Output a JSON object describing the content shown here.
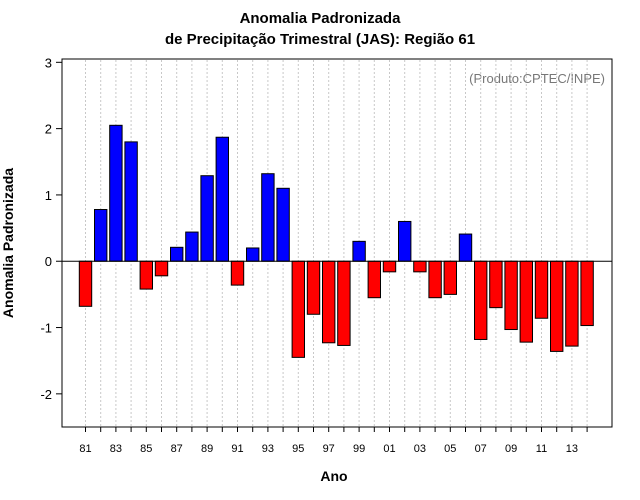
{
  "chart_data": {
    "type": "bar",
    "title": "Anomalia Padronizada",
    "subtitle": "de Precipitação Trimestral (JAS): Região 61",
    "xlabel": "Ano",
    "ylabel": "Anomalia Padronizada",
    "annotation": "(Produto:CPTEC/INPE)",
    "ylim": [
      -2.5,
      3.05
    ],
    "yticks": [
      -2,
      -1,
      0,
      1,
      2,
      3
    ],
    "xtick_labels": [
      "81",
      "83",
      "85",
      "87",
      "89",
      "91",
      "93",
      "95",
      "97",
      "99",
      "01",
      "03",
      "05",
      "07",
      "09",
      "11",
      "13"
    ],
    "categories": [
      "81",
      "82",
      "83",
      "84",
      "85",
      "86",
      "87",
      "88",
      "89",
      "90",
      "91",
      "92",
      "93",
      "94",
      "95",
      "96",
      "97",
      "98",
      "99",
      "00",
      "01",
      "02",
      "03",
      "04",
      "05",
      "06",
      "07",
      "08",
      "09",
      "10",
      "11",
      "12",
      "13",
      "14"
    ],
    "values": [
      -0.68,
      0.78,
      2.05,
      1.8,
      -0.42,
      -0.22,
      0.21,
      0.44,
      1.29,
      1.87,
      -0.36,
      0.2,
      1.32,
      1.1,
      -1.45,
      -0.8,
      -1.23,
      -1.27,
      0.3,
      -0.55,
      -0.16,
      0.6,
      -0.16,
      -0.55,
      -0.5,
      0.41,
      -1.18,
      -0.7,
      -1.03,
      -1.22,
      -0.86,
      -1.36,
      -1.28,
      -0.97
    ],
    "colors": {
      "positive": "#0000ff",
      "negative": "#ff0000",
      "grid": "#c8c8c8"
    },
    "grid": true
  }
}
